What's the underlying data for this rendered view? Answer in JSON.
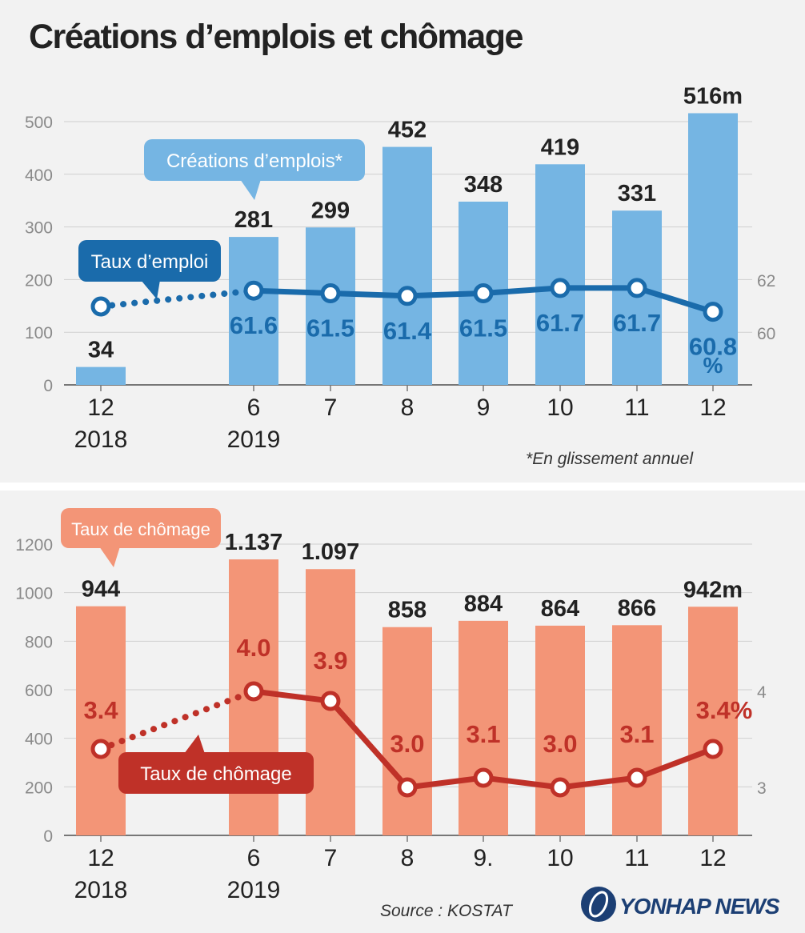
{
  "title": "Créations d’emplois et chômage",
  "source": "Source : KOSTAT",
  "logo": "YONHAP NEWS",
  "colors": {
    "employment_bar": "#75b5e3",
    "employment_line": "#1a6bab",
    "unemployment_bar": "#f39577",
    "unemployment_line": "#bf3128",
    "axis": "#8a8a8a"
  },
  "chart_data": [
    {
      "type": "bar",
      "title": "Créations d’emplois",
      "categories": [
        "12",
        "6",
        "7",
        "8",
        "9",
        "10",
        "11",
        "12"
      ],
      "category_years": [
        "2018",
        "2019",
        "",
        "",
        "",
        "",
        "",
        ""
      ],
      "values": [
        34,
        281,
        299,
        452,
        348,
        419,
        331,
        516
      ],
      "value_labels": [
        "34",
        "281",
        "299",
        "452",
        "348",
        "419",
        "331",
        "516m"
      ],
      "unit": "milliers",
      "ylim": [
        0,
        500
      ],
      "yticks": [
        0,
        100,
        200,
        300,
        400,
        500
      ],
      "series_label": "Créations d’emplois*",
      "footnote": "*En glissement annuel",
      "line": {
        "name": "Taux d’emploi",
        "type": "line",
        "values": [
          61.0,
          61.6,
          61.5,
          61.4,
          61.5,
          61.7,
          61.7,
          60.8
        ],
        "value_labels": [
          "",
          "61.6",
          "61.5",
          "61.4",
          "61.5",
          "61.7",
          "61.7",
          "60.8"
        ],
        "unit_label": "%",
        "y2ticks": [
          60,
          62
        ],
        "dotted_segment": [
          0,
          1
        ]
      }
    },
    {
      "type": "bar",
      "title": "Taux de chômage",
      "categories": [
        "12",
        "6",
        "7",
        "8",
        "9.",
        "10",
        "11",
        "12"
      ],
      "category_years": [
        "2018",
        "2019",
        "",
        "",
        "",
        "",
        "",
        ""
      ],
      "values": [
        944,
        1137,
        1097,
        858,
        884,
        864,
        866,
        942
      ],
      "value_labels": [
        "944",
        "1.137",
        "1.097",
        "858",
        "884",
        "864",
        "866",
        "942m"
      ],
      "unit": "milliers",
      "ylim": [
        0,
        1200
      ],
      "yticks": [
        0,
        200,
        400,
        600,
        800,
        1000,
        1200
      ],
      "series_label": "Taux de chômage",
      "line": {
        "name": "Taux de chômage",
        "type": "line",
        "values": [
          3.4,
          4.0,
          3.9,
          3.0,
          3.1,
          3.0,
          3.1,
          3.4
        ],
        "value_labels": [
          "3.4",
          "4.0",
          "3.9",
          "3.0",
          "3.1",
          "3.0",
          "3.1",
          "3.4%"
        ],
        "y2ticks": [
          3,
          4
        ],
        "dotted_segment": [
          0,
          1
        ]
      }
    }
  ]
}
